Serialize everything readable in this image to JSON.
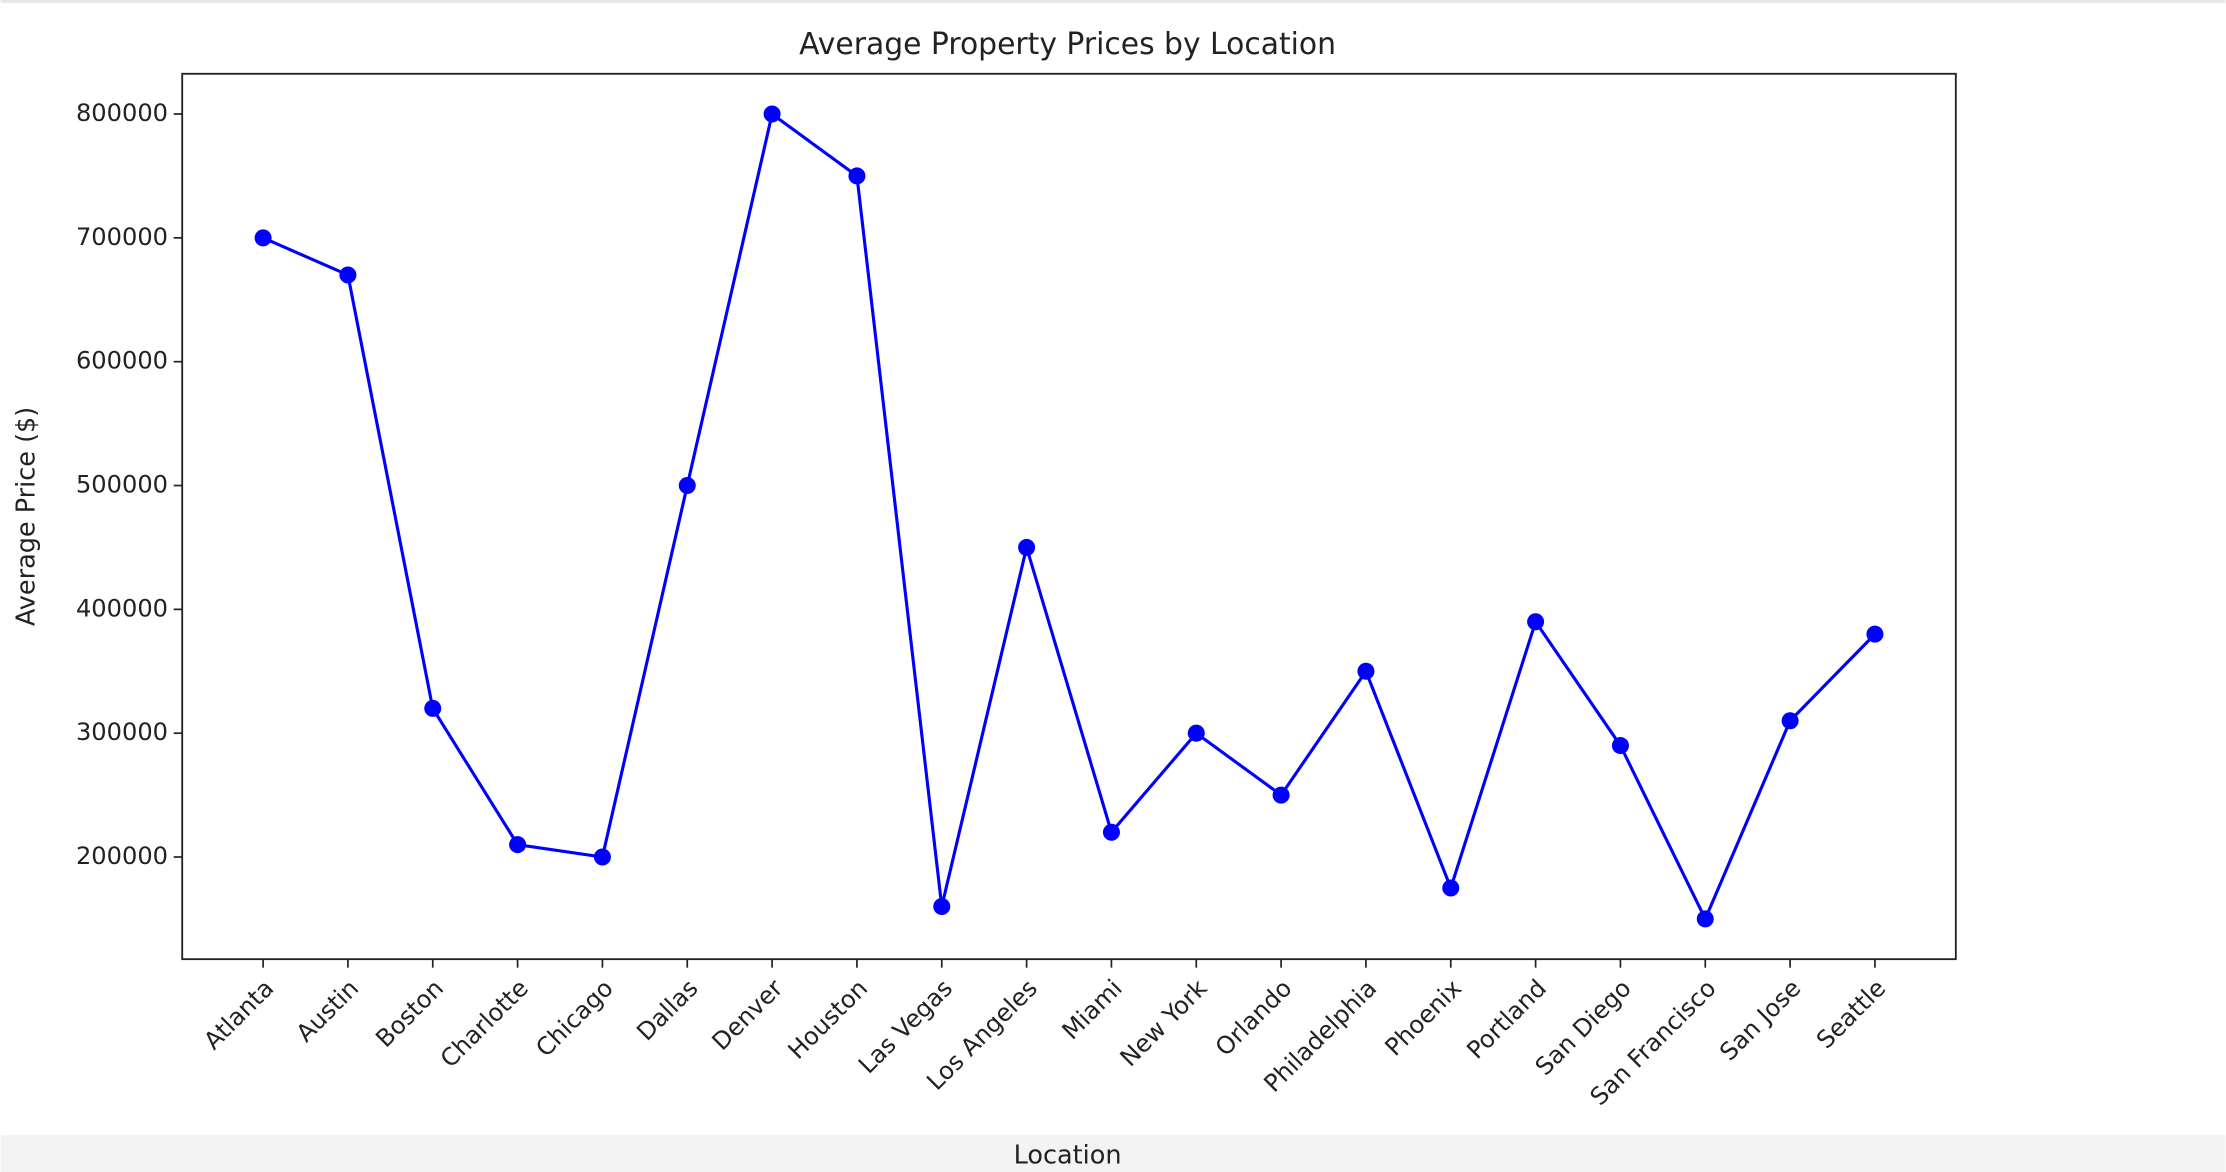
{
  "chart_data": {
    "type": "line",
    "title": "Average Property Prices by Location",
    "xlabel": "Location",
    "ylabel": "Average Price ($)",
    "categories": [
      "Atlanta",
      "Austin",
      "Boston",
      "Charlotte",
      "Chicago",
      "Dallas",
      "Denver",
      "Houston",
      "Las Vegas",
      "Los Angeles",
      "Miami",
      "New York",
      "Orlando",
      "Philadelphia",
      "Phoenix",
      "Portland",
      "San Diego",
      "San Francisco",
      "San Jose",
      "Seattle"
    ],
    "values": [
      700000,
      670000,
      320000,
      210000,
      200000,
      500000,
      800000,
      750000,
      160000,
      450000,
      220000,
      300000,
      250000,
      350000,
      175000,
      390000,
      290000,
      150000,
      310000,
      380000
    ],
    "color": "#0000ff",
    "marker": "o",
    "ylim": [
      117500,
      832500
    ],
    "yticks": [
      200000,
      300000,
      400000,
      500000,
      600000,
      700000,
      800000
    ],
    "grid": false
  }
}
